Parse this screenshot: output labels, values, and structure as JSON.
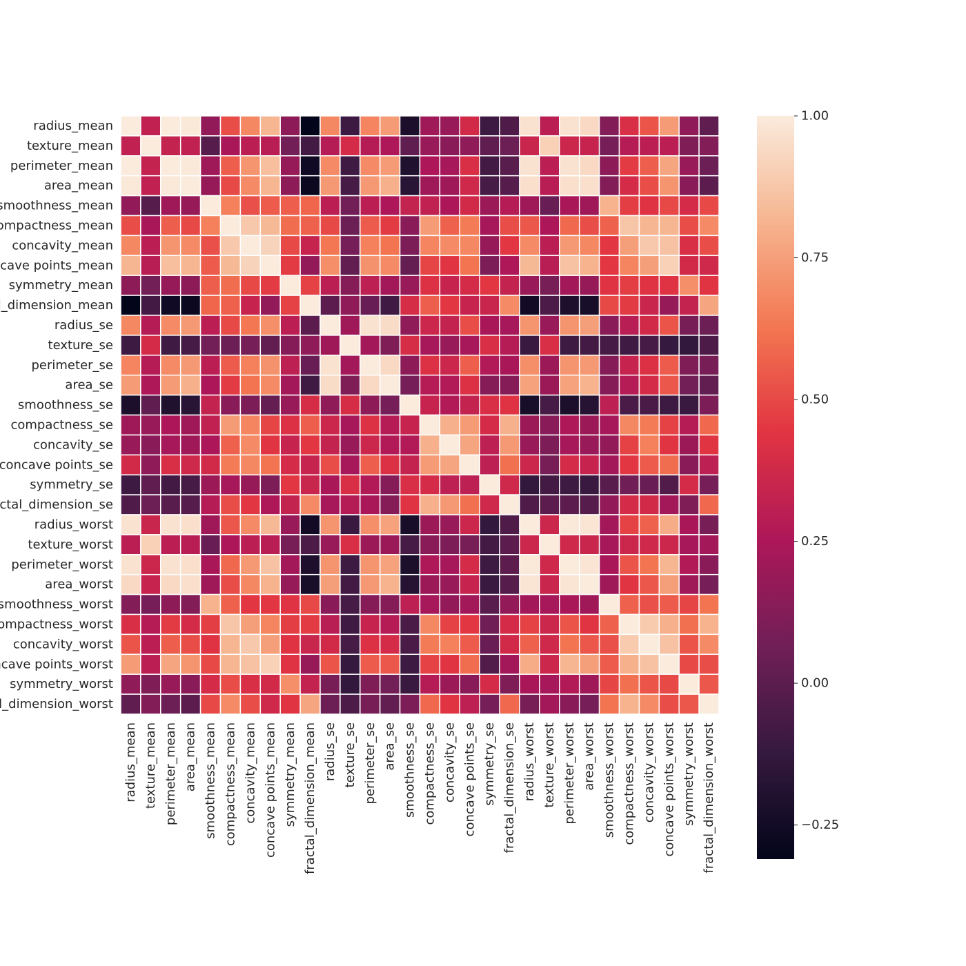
{
  "chart_data": {
    "type": "heatmap",
    "title": "",
    "xlabel": "",
    "ylabel": "",
    "colormap": "rocket",
    "colormap_stops": [
      "#03051a",
      "#35193e",
      "#701f57",
      "#ad1759",
      "#e13342",
      "#f37651",
      "#f6b48f",
      "#faebdd"
    ],
    "vmin": -0.31,
    "vmax": 1.0,
    "colorbar_ticks": [
      -0.25,
      0.0,
      0.25,
      0.5,
      0.75,
      1.0
    ],
    "colorbar_tick_labels": [
      "−0.25",
      "0.00",
      "0.25",
      "0.50",
      "0.75",
      "1.00"
    ],
    "labels": [
      "radius_mean",
      "texture_mean",
      "perimeter_mean",
      "area_mean",
      "smoothness_mean",
      "compactness_mean",
      "concavity_mean",
      "concave points_mean",
      "symmetry_mean",
      "fractal_dimension_mean",
      "radius_se",
      "texture_se",
      "perimeter_se",
      "area_se",
      "smoothness_se",
      "compactness_se",
      "concavity_se",
      "concave points_se",
      "symmetry_se",
      "fractal_dimension_se",
      "radius_worst",
      "texture_worst",
      "perimeter_worst",
      "area_worst",
      "smoothness_worst",
      "compactness_worst",
      "concavity_worst",
      "concave points_worst",
      "symmetry_worst",
      "fractal_dimension_worst"
    ],
    "matrix": [
      [
        1,
        0.32,
        1,
        0.99,
        0.17,
        0.51,
        0.68,
        0.82,
        0.15,
        -0.31,
        0.68,
        -0.1,
        0.67,
        0.74,
        -0.22,
        0.21,
        0.19,
        0.38,
        -0.1,
        -0.04,
        0.97,
        0.3,
        0.97,
        0.94,
        0.12,
        0.41,
        0.53,
        0.74,
        0.16,
        0.01
      ],
      [
        0.32,
        1,
        0.33,
        0.32,
        -0.02,
        0.24,
        0.3,
        0.29,
        0.07,
        -0.08,
        0.28,
        0.39,
        0.28,
        0.26,
        0.01,
        0.19,
        0.14,
        0.16,
        0.01,
        0.05,
        0.35,
        0.91,
        0.36,
        0.34,
        0.08,
        0.28,
        0.3,
        0.3,
        0.11,
        0.12
      ],
      [
        1,
        0.33,
        1,
        0.99,
        0.21,
        0.56,
        0.72,
        0.85,
        0.18,
        -0.26,
        0.69,
        -0.09,
        0.69,
        0.74,
        -0.2,
        0.25,
        0.23,
        0.41,
        -0.08,
        -0.01,
        0.97,
        0.3,
        0.97,
        0.94,
        0.15,
        0.46,
        0.56,
        0.77,
        0.19,
        0.05
      ],
      [
        0.99,
        0.32,
        0.99,
        1,
        0.18,
        0.5,
        0.69,
        0.82,
        0.15,
        -0.28,
        0.73,
        -0.07,
        0.73,
        0.8,
        -0.17,
        0.21,
        0.21,
        0.37,
        -0.07,
        -0.02,
        0.96,
        0.29,
        0.96,
        0.96,
        0.12,
        0.39,
        0.51,
        0.72,
        0.14,
        0.0
      ],
      [
        0.17,
        -0.02,
        0.21,
        0.18,
        1,
        0.66,
        0.52,
        0.55,
        0.56,
        0.58,
        0.3,
        0.07,
        0.3,
        0.25,
        0.33,
        0.32,
        0.25,
        0.38,
        0.2,
        0.28,
        0.21,
        0.04,
        0.24,
        0.21,
        0.81,
        0.47,
        0.43,
        0.5,
        0.39,
        0.5
      ],
      [
        0.51,
        0.24,
        0.56,
        0.5,
        0.66,
        1,
        0.88,
        0.83,
        0.6,
        0.57,
        0.5,
        0.05,
        0.55,
        0.46,
        0.14,
        0.74,
        0.57,
        0.64,
        0.23,
        0.51,
        0.54,
        0.25,
        0.59,
        0.51,
        0.57,
        0.87,
        0.82,
        0.82,
        0.51,
        0.69
      ],
      [
        0.68,
        0.3,
        0.72,
        0.69,
        0.52,
        0.88,
        1,
        0.92,
        0.5,
        0.34,
        0.63,
        0.08,
        0.66,
        0.62,
        0.1,
        0.67,
        0.69,
        0.68,
        0.18,
        0.45,
        0.69,
        0.3,
        0.73,
        0.68,
        0.45,
        0.75,
        0.88,
        0.86,
        0.41,
        0.51
      ],
      [
        0.82,
        0.29,
        0.85,
        0.82,
        0.55,
        0.83,
        0.92,
        1,
        0.46,
        0.17,
        0.7,
        0.02,
        0.71,
        0.69,
        0.03,
        0.49,
        0.44,
        0.62,
        0.1,
        0.26,
        0.83,
        0.29,
        0.86,
        0.81,
        0.45,
        0.67,
        0.75,
        0.91,
        0.38,
        0.37
      ],
      [
        0.15,
        0.07,
        0.18,
        0.15,
        0.56,
        0.6,
        0.5,
        0.46,
        1,
        0.48,
        0.3,
        0.13,
        0.31,
        0.22,
        0.19,
        0.42,
        0.34,
        0.39,
        0.45,
        0.33,
        0.19,
        0.09,
        0.22,
        0.18,
        0.43,
        0.47,
        0.43,
        0.43,
        0.7,
        0.44
      ],
      [
        -0.31,
        -0.08,
        -0.26,
        -0.28,
        0.58,
        0.57,
        0.34,
        0.17,
        0.48,
        1,
        0.0,
        0.16,
        0.04,
        -0.09,
        0.4,
        0.56,
        0.45,
        0.34,
        0.35,
        0.69,
        -0.25,
        -0.05,
        -0.21,
        -0.23,
        0.5,
        0.46,
        0.35,
        0.18,
        0.33,
        0.77
      ],
      [
        0.68,
        0.28,
        0.69,
        0.73,
        0.3,
        0.5,
        0.63,
        0.7,
        0.3,
        0.0,
        1,
        0.21,
        0.97,
        0.95,
        0.16,
        0.36,
        0.33,
        0.51,
        0.24,
        0.23,
        0.72,
        0.19,
        0.72,
        0.75,
        0.14,
        0.29,
        0.38,
        0.53,
        0.09,
        0.05
      ],
      [
        -0.1,
        0.39,
        -0.09,
        -0.07,
        0.07,
        0.05,
        0.08,
        0.02,
        0.13,
        0.16,
        0.21,
        1,
        0.22,
        0.11,
        0.4,
        0.23,
        0.19,
        0.23,
        0.41,
        0.28,
        -0.11,
        0.41,
        -0.1,
        -0.08,
        -0.07,
        -0.09,
        -0.07,
        -0.12,
        -0.13,
        -0.05
      ],
      [
        0.67,
        0.28,
        0.69,
        0.73,
        0.3,
        0.55,
        0.66,
        0.71,
        0.31,
        0.04,
        0.97,
        0.22,
        1,
        0.94,
        0.15,
        0.42,
        0.36,
        0.56,
        0.27,
        0.24,
        0.7,
        0.2,
        0.72,
        0.73,
        0.13,
        0.34,
        0.42,
        0.55,
        0.11,
        0.09
      ],
      [
        0.74,
        0.26,
        0.74,
        0.8,
        0.25,
        0.46,
        0.62,
        0.69,
        0.22,
        -0.09,
        0.95,
        0.11,
        0.94,
        1,
        0.08,
        0.28,
        0.27,
        0.42,
        0.13,
        0.13,
        0.76,
        0.2,
        0.76,
        0.81,
        0.13,
        0.28,
        0.39,
        0.54,
        0.07,
        0.02
      ],
      [
        -0.22,
        0.01,
        -0.2,
        -0.17,
        0.33,
        0.14,
        0.1,
        0.03,
        0.19,
        0.4,
        0.16,
        0.4,
        0.15,
        0.08,
        1,
        0.34,
        0.27,
        0.33,
        0.41,
        0.43,
        -0.23,
        -0.07,
        -0.22,
        -0.18,
        0.31,
        -0.06,
        -0.06,
        -0.1,
        -0.11,
        0.1
      ],
      [
        0.21,
        0.19,
        0.25,
        0.21,
        0.32,
        0.74,
        0.67,
        0.49,
        0.42,
        0.56,
        0.36,
        0.23,
        0.42,
        0.28,
        0.34,
        1,
        0.8,
        0.74,
        0.39,
        0.8,
        0.2,
        0.14,
        0.26,
        0.2,
        0.23,
        0.68,
        0.64,
        0.48,
        0.28,
        0.59
      ],
      [
        0.19,
        0.14,
        0.23,
        0.21,
        0.25,
        0.57,
        0.69,
        0.44,
        0.34,
        0.45,
        0.33,
        0.19,
        0.36,
        0.27,
        0.27,
        0.8,
        1,
        0.77,
        0.31,
        0.73,
        0.19,
        0.1,
        0.23,
        0.19,
        0.17,
        0.48,
        0.66,
        0.44,
        0.2,
        0.44
      ],
      [
        0.38,
        0.16,
        0.41,
        0.37,
        0.38,
        0.64,
        0.68,
        0.62,
        0.39,
        0.34,
        0.51,
        0.23,
        0.56,
        0.42,
        0.33,
        0.74,
        0.77,
        1,
        0.31,
        0.61,
        0.36,
        0.09,
        0.39,
        0.34,
        0.22,
        0.45,
        0.55,
        0.6,
        0.14,
        0.31
      ],
      [
        -0.1,
        0.01,
        -0.08,
        -0.07,
        0.2,
        0.23,
        0.18,
        0.1,
        0.45,
        0.35,
        0.24,
        0.41,
        0.27,
        0.13,
        0.41,
        0.39,
        0.31,
        0.31,
        1,
        0.37,
        -0.13,
        -0.08,
        -0.1,
        -0.11,
        -0.01,
        0.06,
        0.04,
        -0.03,
        0.39,
        0.08
      ],
      [
        -0.04,
        0.05,
        -0.01,
        -0.02,
        0.28,
        0.51,
        0.45,
        0.26,
        0.33,
        0.69,
        0.23,
        0.28,
        0.24,
        0.13,
        0.43,
        0.8,
        0.73,
        0.61,
        0.37,
        1,
        -0.04,
        -0.0,
        -0.0,
        -0.02,
        0.17,
        0.39,
        0.38,
        0.22,
        0.11,
        0.59
      ],
      [
        0.97,
        0.35,
        0.97,
        0.96,
        0.21,
        0.54,
        0.69,
        0.83,
        0.19,
        -0.25,
        0.72,
        -0.11,
        0.7,
        0.76,
        -0.23,
        0.2,
        0.19,
        0.36,
        -0.13,
        -0.04,
        1,
        0.36,
        0.99,
        0.98,
        0.22,
        0.48,
        0.57,
        0.79,
        0.24,
        0.09
      ],
      [
        0.3,
        0.91,
        0.3,
        0.29,
        0.04,
        0.25,
        0.3,
        0.29,
        0.09,
        -0.05,
        0.19,
        0.41,
        0.2,
        0.2,
        -0.07,
        0.14,
        0.1,
        0.09,
        -0.08,
        -0.0,
        0.36,
        1,
        0.37,
        0.35,
        0.23,
        0.36,
        0.37,
        0.36,
        0.23,
        0.22
      ],
      [
        0.97,
        0.36,
        0.97,
        0.96,
        0.24,
        0.59,
        0.73,
        0.86,
        0.22,
        -0.21,
        0.72,
        -0.1,
        0.72,
        0.76,
        -0.22,
        0.26,
        0.23,
        0.39,
        -0.1,
        -0.0,
        0.99,
        0.37,
        1,
        0.98,
        0.24,
        0.53,
        0.62,
        0.82,
        0.27,
        0.14
      ],
      [
        0.94,
        0.34,
        0.94,
        0.96,
        0.21,
        0.51,
        0.68,
        0.81,
        0.18,
        -0.23,
        0.75,
        -0.08,
        0.73,
        0.81,
        -0.18,
        0.2,
        0.19,
        0.34,
        -0.11,
        -0.02,
        0.98,
        0.35,
        0.98,
        1,
        0.21,
        0.44,
        0.54,
        0.75,
        0.21,
        0.08
      ],
      [
        0.12,
        0.08,
        0.15,
        0.12,
        0.81,
        0.57,
        0.45,
        0.45,
        0.43,
        0.5,
        0.14,
        -0.07,
        0.13,
        0.13,
        0.31,
        0.23,
        0.17,
        0.22,
        -0.01,
        0.17,
        0.22,
        0.23,
        0.24,
        0.21,
        1,
        0.57,
        0.52,
        0.55,
        0.49,
        0.62
      ],
      [
        0.41,
        0.28,
        0.46,
        0.39,
        0.47,
        0.87,
        0.75,
        0.67,
        0.47,
        0.46,
        0.29,
        -0.09,
        0.34,
        0.28,
        -0.06,
        0.68,
        0.48,
        0.45,
        0.06,
        0.39,
        0.48,
        0.36,
        0.53,
        0.44,
        0.57,
        1,
        0.89,
        0.8,
        0.61,
        0.81
      ],
      [
        0.53,
        0.3,
        0.56,
        0.51,
        0.43,
        0.82,
        0.88,
        0.75,
        0.43,
        0.35,
        0.38,
        -0.07,
        0.42,
        0.39,
        -0.06,
        0.64,
        0.66,
        0.55,
        0.04,
        0.38,
        0.57,
        0.37,
        0.62,
        0.54,
        0.52,
        0.89,
        1,
        0.86,
        0.53,
        0.69
      ],
      [
        0.74,
        0.3,
        0.77,
        0.72,
        0.5,
        0.82,
        0.86,
        0.91,
        0.43,
        0.18,
        0.53,
        -0.12,
        0.55,
        0.54,
        -0.1,
        0.48,
        0.44,
        0.6,
        -0.03,
        0.22,
        0.79,
        0.36,
        0.82,
        0.75,
        0.55,
        0.8,
        0.86,
        1,
        0.5,
        0.51
      ],
      [
        0.16,
        0.11,
        0.19,
        0.14,
        0.39,
        0.51,
        0.41,
        0.38,
        0.7,
        0.33,
        0.09,
        -0.13,
        0.11,
        0.07,
        -0.11,
        0.28,
        0.2,
        0.14,
        0.39,
        0.11,
        0.24,
        0.23,
        0.27,
        0.21,
        0.49,
        0.61,
        0.53,
        0.5,
        1,
        0.54
      ],
      [
        0.01,
        0.12,
        0.05,
        0.0,
        0.5,
        0.69,
        0.51,
        0.37,
        0.44,
        0.77,
        0.05,
        -0.05,
        0.09,
        0.02,
        0.1,
        0.59,
        0.44,
        0.31,
        0.08,
        0.59,
        0.09,
        0.22,
        0.14,
        0.08,
        0.62,
        0.81,
        0.69,
        0.51,
        0.54,
        1
      ]
    ]
  }
}
